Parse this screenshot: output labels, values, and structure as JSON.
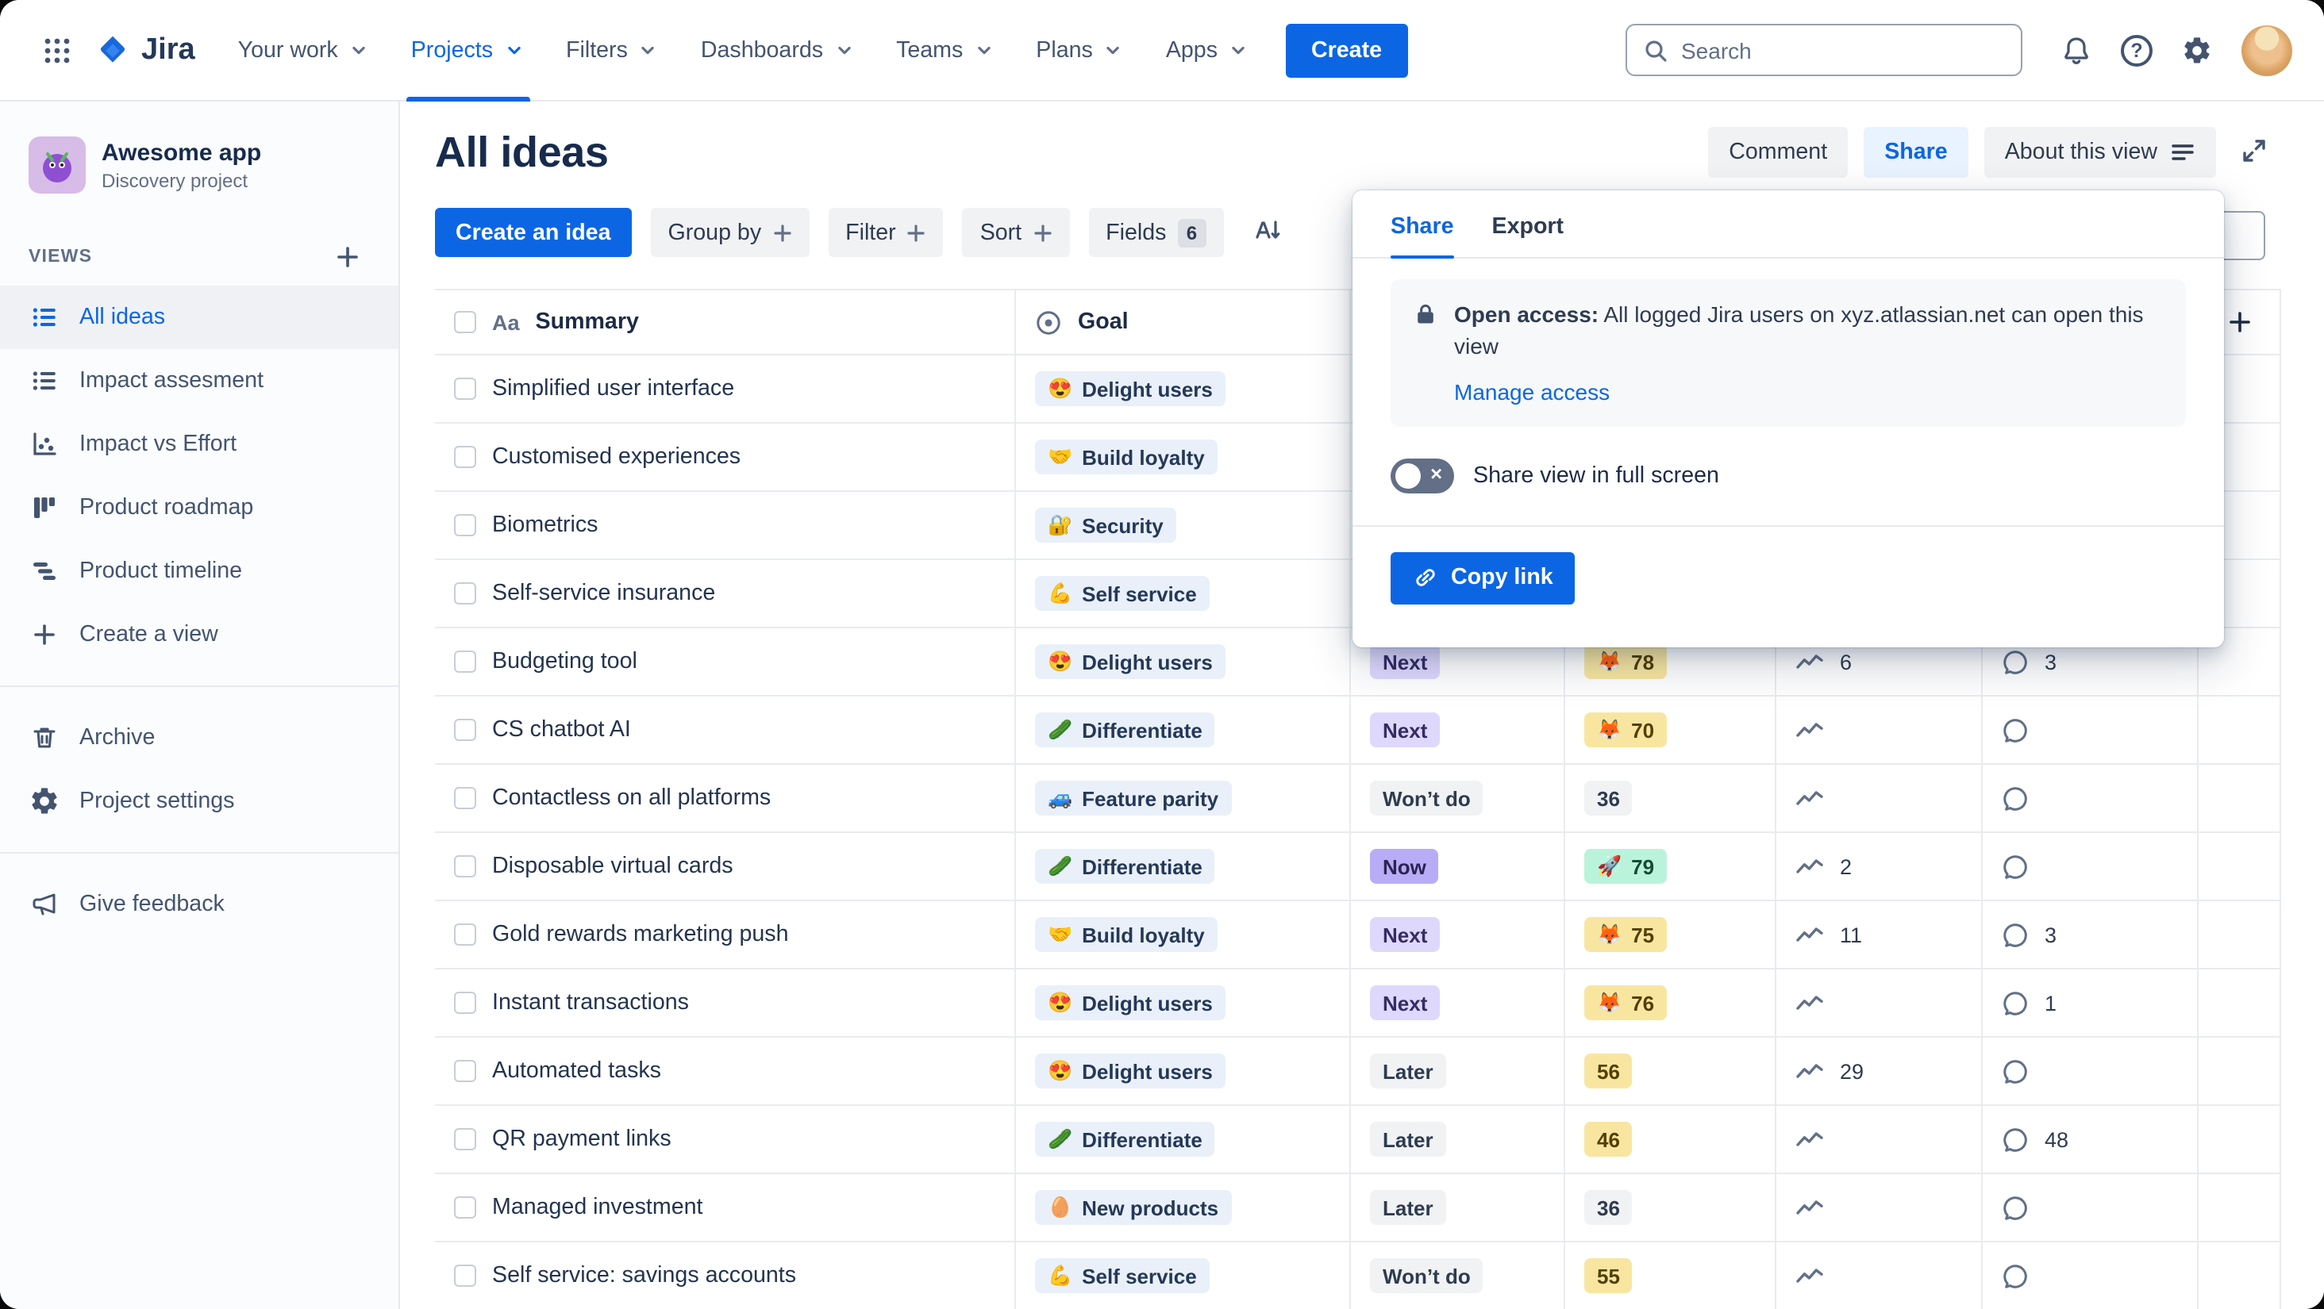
{
  "colors": {
    "accent_blue": "#0C66E4",
    "share_selected_bg": "#E9F2FF",
    "status_now_bg": "#B8ACF6",
    "status_next_bg": "#DFD8FD",
    "status_neutral_bg": "#F1F2F4",
    "score_yellow_bg": "#F8E6A0",
    "score_green_bg": "#BAF3DB",
    "goal_chip_bg": "#E9F0F9"
  },
  "topnav": {
    "logo": "Jira",
    "items": [
      {
        "id": "your-work",
        "label": "Your work",
        "dropdown": true
      },
      {
        "id": "projects",
        "label": "Projects",
        "dropdown": true,
        "active": true
      },
      {
        "id": "filters",
        "label": "Filters",
        "dropdown": true
      },
      {
        "id": "dashboards",
        "label": "Dashboards",
        "dropdown": true
      },
      {
        "id": "teams",
        "label": "Teams",
        "dropdown": true
      },
      {
        "id": "plans",
        "label": "Plans",
        "dropdown": true
      },
      {
        "id": "apps",
        "label": "Apps",
        "dropdown": true
      }
    ],
    "create_button": "Create",
    "search_placeholder": "Search"
  },
  "sidebar": {
    "project_name": "Awesome app",
    "project_type": "Discovery project",
    "views_label": "VIEWS",
    "views": [
      {
        "id": "all-ideas",
        "label": "All ideas",
        "icon": "list-icon",
        "selected": true
      },
      {
        "id": "impact-assesment",
        "label": "Impact assesment",
        "icon": "list-icon"
      },
      {
        "id": "impact-vs-effort",
        "label": "Impact vs Effort",
        "icon": "scatter-icon"
      },
      {
        "id": "product-roadmap",
        "label": "Product roadmap",
        "icon": "board-icon"
      },
      {
        "id": "product-timeline",
        "label": "Product timeline",
        "icon": "timeline-icon"
      },
      {
        "id": "create-a-view",
        "label": "Create a view",
        "icon": "plus-icon"
      }
    ],
    "tools": [
      {
        "id": "archive",
        "label": "Archive",
        "icon": "trash-icon"
      },
      {
        "id": "project-settings",
        "label": "Project settings",
        "icon": "gear-icon"
      }
    ],
    "feedback_label": "Give feedback"
  },
  "view_header": {
    "title": "All ideas",
    "comment_button": "Comment",
    "share_button": "Share",
    "about_button": "About this view"
  },
  "toolbar": {
    "create_idea_button": "Create an idea",
    "group_by_button": "Group by",
    "filter_button": "Filter",
    "sort_button": "Sort",
    "fields_button": "Fields",
    "fields_count": "6"
  },
  "table": {
    "summary_header": "Summary",
    "summary_header_icon": "Aa",
    "goal_header": "Goal",
    "rows": [
      {
        "summary": "Simplified user interface",
        "goal_emoji": "😍",
        "goal": "Delight users",
        "status": null,
        "status_color": null,
        "score": null,
        "score_color": null,
        "score_emoji": null,
        "trend": null,
        "comments": null
      },
      {
        "summary": "Customised experiences",
        "goal_emoji": "🤝",
        "goal": "Build loyalty",
        "status": null,
        "status_color": null,
        "score": null,
        "score_color": null,
        "score_emoji": null,
        "trend": null,
        "comments": null
      },
      {
        "summary": "Biometrics",
        "goal_emoji": "🔐",
        "goal": "Security",
        "status": null,
        "status_color": null,
        "score": null,
        "score_color": null,
        "score_emoji": null,
        "trend": null,
        "comments": null
      },
      {
        "summary": "Self-service insurance",
        "goal_emoji": "💪",
        "goal": "Self service",
        "status": null,
        "status_color": null,
        "score": null,
        "score_color": null,
        "score_emoji": null,
        "trend": null,
        "comments": null
      },
      {
        "summary": "Budgeting tool",
        "goal_emoji": "😍",
        "goal": "Delight users",
        "status": "Next",
        "status_color": "next",
        "score": "78",
        "score_color": "yellow",
        "score_emoji": "🦊",
        "trend": "6",
        "comments": "3"
      },
      {
        "summary": "CS chatbot AI",
        "goal_emoji": "🥒",
        "goal": "Differentiate",
        "status": "Next",
        "status_color": "next",
        "score": "70",
        "score_color": "yellow",
        "score_emoji": "🦊",
        "trend": "",
        "comments": ""
      },
      {
        "summary": "Contactless on all platforms",
        "goal_emoji": "🚙",
        "goal": "Feature parity",
        "status": "Won’t do",
        "status_color": "neutral",
        "score": "36",
        "score_color": "neutral",
        "score_emoji": null,
        "trend": "",
        "comments": ""
      },
      {
        "summary": "Disposable virtual cards",
        "goal_emoji": "🥒",
        "goal": "Differentiate",
        "status": "Now",
        "status_color": "now",
        "score": "79",
        "score_color": "green",
        "score_emoji": "🚀",
        "trend": "2",
        "comments": ""
      },
      {
        "summary": "Gold rewards marketing push",
        "goal_emoji": "🤝",
        "goal": "Build loyalty",
        "status": "Next",
        "status_color": "next",
        "score": "75",
        "score_color": "yellow",
        "score_emoji": "🦊",
        "trend": "11",
        "comments": "3"
      },
      {
        "summary": "Instant transactions",
        "goal_emoji": "😍",
        "goal": "Delight users",
        "status": "Next",
        "status_color": "next",
        "score": "76",
        "score_color": "yellow",
        "score_emoji": "🦊",
        "trend": "",
        "comments": "1"
      },
      {
        "summary": "Automated tasks",
        "goal_emoji": "😍",
        "goal": "Delight users",
        "status": "Later",
        "status_color": "neutral",
        "score": "56",
        "score_color": "yellow",
        "score_emoji": null,
        "trend": "29",
        "comments": ""
      },
      {
        "summary": "QR payment links",
        "goal_emoji": "🥒",
        "goal": "Differentiate",
        "status": "Later",
        "status_color": "neutral",
        "score": "46",
        "score_color": "yellow",
        "score_emoji": null,
        "trend": "",
        "comments": "48"
      },
      {
        "summary": "Managed investment",
        "goal_emoji": "🥚",
        "goal": "New products",
        "status": "Later",
        "status_color": "neutral",
        "score": "36",
        "score_color": "neutral",
        "score_emoji": null,
        "trend": "",
        "comments": ""
      },
      {
        "summary": "Self service: savings accounts",
        "goal_emoji": "💪",
        "goal": "Self service",
        "status": "Won’t do",
        "status_color": "neutral",
        "score": "55",
        "score_color": "yellow",
        "score_emoji": null,
        "trend": "",
        "comments": ""
      }
    ]
  },
  "share_popover": {
    "share_tab": "Share",
    "export_tab": "Export",
    "open_access_label": "Open access:",
    "open_access_text": "All logged Jira users on xyz.atlassian.net can open this view",
    "manage_access_link": "Manage access",
    "fullscreen_toggle_label": "Share view in full screen",
    "toggle_state": "off",
    "copy_link_button": "Copy link"
  }
}
